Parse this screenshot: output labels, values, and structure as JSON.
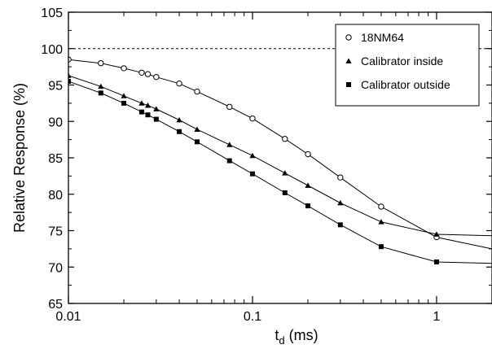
{
  "chart_data": {
    "type": "line",
    "xlabel_main": "t",
    "xlabel_sub": "d",
    "xlabel_unit": " (ms)",
    "ylabel": "Relative Response (%)",
    "x_scale": "log",
    "xlim": [
      0.01,
      2.0
    ],
    "ylim": [
      65,
      105
    ],
    "x_ticks": [
      0.01,
      0.1,
      1
    ],
    "x_tick_labels": [
      "0.01",
      "0.1",
      "1"
    ],
    "y_ticks": [
      65,
      70,
      75,
      80,
      85,
      90,
      95,
      100,
      105
    ],
    "y_tick_labels": [
      "65",
      "70",
      "75",
      "80",
      "85",
      "90",
      "95",
      "100",
      "105"
    ],
    "reference_line": {
      "y": 100,
      "style": "dashed"
    },
    "legend_position": "top-right",
    "series": [
      {
        "name": "18NM64",
        "marker": "open-circle",
        "x": [
          0.01,
          0.015,
          0.02,
          0.025,
          0.027,
          0.03,
          0.04,
          0.05,
          0.075,
          0.1,
          0.15,
          0.2,
          0.3,
          0.5,
          1.0,
          2.0
        ],
        "y": [
          98.5,
          98.0,
          97.3,
          96.7,
          96.5,
          96.1,
          95.2,
          94.1,
          92.0,
          90.4,
          87.6,
          85.5,
          82.3,
          78.3,
          74.1,
          72.5
        ]
      },
      {
        "name": "Calibrator inside",
        "marker": "filled-triangle",
        "x": [
          0.01,
          0.015,
          0.02,
          0.025,
          0.027,
          0.03,
          0.04,
          0.05,
          0.075,
          0.1,
          0.15,
          0.2,
          0.3,
          0.5,
          1.0,
          2.0
        ],
        "y": [
          96.3,
          94.8,
          93.5,
          92.5,
          92.2,
          91.7,
          90.2,
          88.9,
          86.8,
          85.3,
          82.9,
          81.2,
          78.8,
          76.2,
          74.5,
          74.3
        ]
      },
      {
        "name": "Calibrator outside",
        "marker": "filled-square",
        "x": [
          0.01,
          0.015,
          0.02,
          0.025,
          0.027,
          0.03,
          0.04,
          0.05,
          0.075,
          0.1,
          0.15,
          0.2,
          0.3,
          0.5,
          1.0,
          2.0
        ],
        "y": [
          95.5,
          93.9,
          92.5,
          91.3,
          90.9,
          90.3,
          88.6,
          87.2,
          84.6,
          82.8,
          80.2,
          78.4,
          75.8,
          72.8,
          70.7,
          70.5
        ]
      }
    ]
  }
}
